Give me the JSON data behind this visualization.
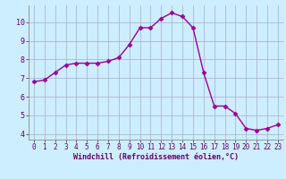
{
  "x": [
    0,
    1,
    2,
    3,
    4,
    5,
    6,
    7,
    8,
    9,
    10,
    11,
    12,
    13,
    14,
    15,
    16,
    17,
    18,
    19,
    20,
    21,
    22,
    23
  ],
  "y": [
    6.8,
    6.9,
    7.3,
    7.7,
    7.8,
    7.8,
    7.8,
    7.9,
    8.1,
    8.8,
    9.7,
    9.7,
    10.2,
    10.5,
    10.3,
    9.7,
    7.3,
    5.5,
    5.5,
    5.1,
    4.3,
    4.2,
    4.3,
    4.5
  ],
  "line_color": "#990099",
  "marker": "D",
  "markersize": 2.5,
  "linewidth": 1.0,
  "bg_color": "#cceeff",
  "grid_color": "#aaaacc",
  "xlabel": "Windchill (Refroidissement éolien,°C)",
  "xlabel_color": "#660066",
  "tick_color": "#660066",
  "ylim": [
    3.7,
    10.9
  ],
  "xlim": [
    -0.5,
    23.5
  ],
  "yticks": [
    4,
    5,
    6,
    7,
    8,
    9,
    10
  ],
  "xticks": [
    0,
    1,
    2,
    3,
    4,
    5,
    6,
    7,
    8,
    9,
    10,
    11,
    12,
    13,
    14,
    15,
    16,
    17,
    18,
    19,
    20,
    21,
    22,
    23
  ],
  "font_family": "monospace",
  "tick_fontsize": 5.5,
  "xlabel_fontsize": 6.0
}
